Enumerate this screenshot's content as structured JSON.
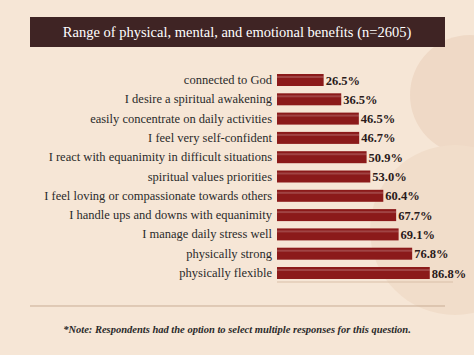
{
  "chart_data": {
    "type": "bar",
    "orientation": "horizontal",
    "title": "Range of physical, mental, and emotional benefits (n=2605)",
    "categories": [
      "connected to God",
      "I desire a spiritual awakening",
      "easily concentrate on daily activities",
      "I feel very self-confident",
      "I react with equanimity in difficult situations",
      "spiritual values priorities",
      "I feel loving or compassionate towards others",
      "I handle ups and downs with equanimity",
      "I manage daily stress well",
      "physically strong",
      "physically flexible"
    ],
    "values": [
      26.5,
      36.5,
      46.5,
      46.7,
      50.9,
      53.0,
      60.4,
      67.7,
      69.1,
      76.8,
      86.8
    ],
    "value_labels": [
      "26.5%",
      "36.5%",
      "46.5%",
      "46.7%",
      "50.9%",
      "53.0%",
      "60.4%",
      "67.7%",
      "69.1%",
      "76.8%",
      "86.8%"
    ],
    "color": "#8b1a1a",
    "xlim": [
      0,
      100
    ],
    "data_labels": true,
    "tick_labels": false,
    "grid": false,
    "annotations": [
      "*Note: Respondents had the option to select multiple responses for this question."
    ]
  }
}
